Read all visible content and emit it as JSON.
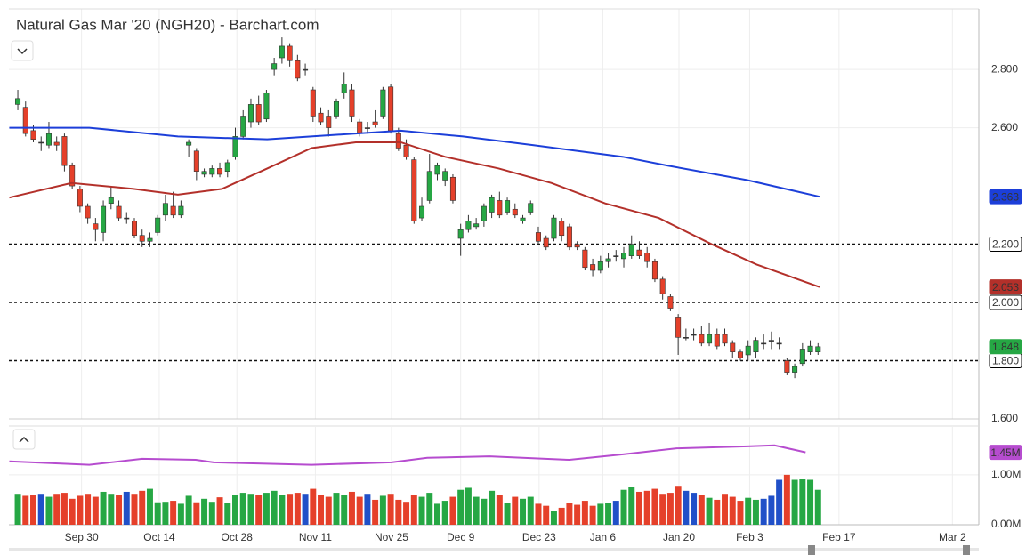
{
  "chart_data": {
    "type": "candlestick",
    "title": "Natural Gas Mar '20 (NGH20) - Barchart.com",
    "xlim": [
      -1.15,
      123.7
    ],
    "xticks": [
      {
        "value": 8.2,
        "label": "Sep 30"
      },
      {
        "value": 18.2,
        "label": "Oct 14"
      },
      {
        "value": 28.2,
        "label": "Oct 28"
      },
      {
        "value": 38.3,
        "label": "Nov 11"
      },
      {
        "value": 48.1,
        "label": "Nov 25"
      },
      {
        "value": 57,
        "label": "Dec 9"
      },
      {
        "value": 67.1,
        "label": "Dec 23"
      },
      {
        "value": 75.3,
        "label": "Jan 6"
      },
      {
        "value": 85.1,
        "label": "Jan 20"
      },
      {
        "value": 94.2,
        "label": "Feb 3"
      },
      {
        "value": 105.7,
        "label": "Feb 17"
      },
      {
        "value": 120.3,
        "label": "Mar 2"
      }
    ],
    "ylim": [
      1.6,
      3.008
    ],
    "yticks": [
      {
        "value": 1.6,
        "label": "1.600"
      },
      {
        "value": 2.6,
        "label": "2.600"
      },
      {
        "value": 2.8,
        "label": "2.800"
      }
    ],
    "grid": true,
    "up_color": "#26a744",
    "down_color": "#e5402a",
    "flat_color": "#2050c8",
    "ohlc": [
      [
        2.68,
        2.73,
        2.66,
        2.7
      ],
      [
        2.67,
        2.69,
        2.57,
        2.58
      ],
      [
        2.59,
        2.61,
        2.55,
        2.56
      ],
      [
        2.55,
        2.57,
        2.52,
        2.55
      ],
      [
        2.54,
        2.62,
        2.53,
        2.58
      ],
      [
        2.55,
        2.57,
        2.52,
        2.54
      ],
      [
        2.57,
        2.58,
        2.45,
        2.47
      ],
      [
        2.47,
        2.48,
        2.39,
        2.4
      ],
      [
        2.39,
        2.4,
        2.31,
        2.33
      ],
      [
        2.33,
        2.34,
        2.27,
        2.29
      ],
      [
        2.27,
        2.29,
        2.21,
        2.25
      ],
      [
        2.24,
        2.35,
        2.21,
        2.33
      ],
      [
        2.34,
        2.4,
        2.32,
        2.36
      ],
      [
        2.33,
        2.35,
        2.28,
        2.29
      ],
      [
        2.29,
        2.31,
        2.27,
        2.29
      ],
      [
        2.28,
        2.29,
        2.22,
        2.23
      ],
      [
        2.23,
        2.25,
        2.19,
        2.21
      ],
      [
        2.21,
        2.24,
        2.19,
        2.22
      ],
      [
        2.24,
        2.3,
        2.23,
        2.29
      ],
      [
        2.3,
        2.37,
        2.28,
        2.34
      ],
      [
        2.33,
        2.38,
        2.29,
        2.3
      ],
      [
        2.3,
        2.35,
        2.29,
        2.33
      ],
      [
        2.54,
        2.56,
        2.5,
        2.55
      ],
      [
        2.52,
        2.53,
        2.42,
        2.45
      ],
      [
        2.44,
        2.46,
        2.43,
        2.45
      ],
      [
        2.44,
        2.47,
        2.43,
        2.46
      ],
      [
        2.46,
        2.48,
        2.43,
        2.44
      ],
      [
        2.45,
        2.49,
        2.43,
        2.48
      ],
      [
        2.5,
        2.6,
        2.49,
        2.57
      ],
      [
        2.57,
        2.66,
        2.56,
        2.64
      ],
      [
        2.62,
        2.7,
        2.6,
        2.68
      ],
      [
        2.68,
        2.71,
        2.61,
        2.62
      ],
      [
        2.63,
        2.73,
        2.62,
        2.72
      ],
      [
        2.8,
        2.84,
        2.78,
        2.82
      ],
      [
        2.84,
        2.91,
        2.82,
        2.88
      ],
      [
        2.88,
        2.89,
        2.81,
        2.83
      ],
      [
        2.83,
        2.85,
        2.76,
        2.77
      ],
      [
        2.8,
        2.82,
        2.78,
        2.8
      ],
      [
        2.73,
        2.74,
        2.62,
        2.64
      ],
      [
        2.65,
        2.67,
        2.61,
        2.62
      ],
      [
        2.64,
        2.66,
        2.57,
        2.6
      ],
      [
        2.64,
        2.7,
        2.63,
        2.69
      ],
      [
        2.72,
        2.79,
        2.7,
        2.75
      ],
      [
        2.73,
        2.75,
        2.62,
        2.64
      ],
      [
        2.62,
        2.63,
        2.57,
        2.58
      ],
      [
        2.6,
        2.62,
        2.58,
        2.6
      ],
      [
        2.62,
        2.66,
        2.6,
        2.61
      ],
      [
        2.64,
        2.74,
        2.63,
        2.73
      ],
      [
        2.74,
        2.75,
        2.58,
        2.59
      ],
      [
        2.58,
        2.6,
        2.52,
        2.53
      ],
      [
        2.54,
        2.56,
        2.49,
        2.5
      ],
      [
        2.49,
        2.5,
        2.27,
        2.28
      ],
      [
        2.29,
        2.36,
        2.28,
        2.33
      ],
      [
        2.35,
        2.51,
        2.34,
        2.45
      ],
      [
        2.44,
        2.48,
        2.42,
        2.47
      ],
      [
        2.42,
        2.46,
        2.4,
        2.45
      ],
      [
        2.43,
        2.44,
        2.34,
        2.35
      ],
      [
        2.22,
        2.27,
        2.16,
        2.25
      ],
      [
        2.25,
        2.3,
        2.24,
        2.28
      ],
      [
        2.26,
        2.29,
        2.25,
        2.27
      ],
      [
        2.28,
        2.34,
        2.26,
        2.33
      ],
      [
        2.31,
        2.37,
        2.29,
        2.36
      ],
      [
        2.35,
        2.38,
        2.29,
        2.3
      ],
      [
        2.31,
        2.36,
        2.3,
        2.35
      ],
      [
        2.32,
        2.34,
        2.29,
        2.3
      ],
      [
        2.28,
        2.3,
        2.27,
        2.29
      ],
      [
        2.31,
        2.35,
        2.3,
        2.34
      ],
      [
        2.24,
        2.26,
        2.2,
        2.21
      ],
      [
        2.22,
        2.23,
        2.18,
        2.19
      ],
      [
        2.22,
        2.3,
        2.21,
        2.29
      ],
      [
        2.28,
        2.29,
        2.21,
        2.23
      ],
      [
        2.26,
        2.27,
        2.18,
        2.19
      ],
      [
        2.2,
        2.21,
        2.18,
        2.19
      ],
      [
        2.18,
        2.19,
        2.11,
        2.12
      ],
      [
        2.13,
        2.15,
        2.09,
        2.11
      ],
      [
        2.11,
        2.16,
        2.1,
        2.14
      ],
      [
        2.14,
        2.17,
        2.12,
        2.15
      ],
      [
        2.16,
        2.18,
        2.14,
        2.16
      ],
      [
        2.15,
        2.19,
        2.12,
        2.17
      ],
      [
        2.16,
        2.23,
        2.15,
        2.2
      ],
      [
        2.18,
        2.21,
        2.15,
        2.16
      ],
      [
        2.17,
        2.19,
        2.12,
        2.14
      ],
      [
        2.14,
        2.15,
        2.07,
        2.08
      ],
      [
        2.08,
        2.09,
        2.01,
        2.03
      ],
      [
        2.02,
        2.03,
        1.97,
        1.98
      ],
      [
        1.95,
        1.96,
        1.82,
        1.88
      ],
      [
        1.88,
        1.91,
        1.87,
        1.88
      ],
      [
        1.89,
        1.91,
        1.87,
        1.89
      ],
      [
        1.89,
        1.92,
        1.85,
        1.86
      ],
      [
        1.86,
        1.93,
        1.85,
        1.89
      ],
      [
        1.89,
        1.91,
        1.84,
        1.85
      ],
      [
        1.89,
        1.91,
        1.85,
        1.86
      ],
      [
        1.86,
        1.87,
        1.81,
        1.83
      ],
      [
        1.83,
        1.84,
        1.8,
        1.81
      ],
      [
        1.82,
        1.87,
        1.8,
        1.85
      ],
      [
        1.83,
        1.88,
        1.81,
        1.87
      ],
      [
        1.86,
        1.89,
        1.84,
        1.86
      ],
      [
        1.87,
        1.9,
        1.84,
        1.87
      ],
      [
        1.86,
        1.88,
        1.84,
        1.86
      ],
      [
        1.8,
        1.81,
        1.75,
        1.76
      ],
      [
        1.76,
        1.79,
        1.74,
        1.78
      ],
      [
        1.79,
        1.86,
        1.78,
        1.84
      ],
      [
        1.83,
        1.87,
        1.82,
        1.85
      ],
      [
        1.83,
        1.86,
        1.82,
        1.848
      ]
    ],
    "series": [
      {
        "color": "#1c3fd9",
        "x": [
          -1.1,
          9.2,
          20.6,
          32.1,
          43.5,
          49.3,
          57.3,
          66.4,
          77.9,
          83.6,
          93.9,
          103.2
        ],
        "values": [
          2.6,
          2.6,
          2.57,
          2.56,
          2.58,
          2.59,
          2.57,
          2.54,
          2.5,
          2.47,
          2.42,
          2.363
        ]
      },
      {
        "color": "#b3302a",
        "x": [
          -1.1,
          6.9,
          14.9,
          20.6,
          26.3,
          32.1,
          37.8,
          43.5,
          49.3,
          55,
          61.9,
          68.7,
          75.6,
          82.5,
          89.3,
          95.1,
          103.2
        ],
        "values": [
          2.36,
          2.41,
          2.39,
          2.37,
          2.39,
          2.46,
          2.53,
          2.55,
          2.55,
          2.5,
          2.46,
          2.41,
          2.34,
          2.29,
          2.2,
          2.13,
          2.053
        ]
      }
    ],
    "hlines": [
      {
        "value": 2.2,
        "label": "2.200"
      },
      {
        "value": 2.0,
        "label": "2.000"
      },
      {
        "value": 1.8,
        "label": "1.800"
      }
    ],
    "volume": {
      "ylim": [
        0,
        1960000
      ],
      "yticks": [
        {
          "value": 0,
          "label": "0.00M"
        },
        {
          "value": 1000000,
          "label": "1.00M"
        }
      ],
      "values": [
        620000,
        580000,
        600000,
        620000,
        560000,
        620000,
        640000,
        520000,
        580000,
        620000,
        560000,
        660000,
        620000,
        600000,
        660000,
        620000,
        680000,
        720000,
        450000,
        460000,
        480000,
        420000,
        580000,
        450000,
        520000,
        460000,
        550000,
        440000,
        600000,
        640000,
        620000,
        600000,
        640000,
        680000,
        600000,
        620000,
        640000,
        620000,
        720000,
        600000,
        560000,
        640000,
        600000,
        660000,
        560000,
        620000,
        500000,
        580000,
        620000,
        500000,
        460000,
        600000,
        560000,
        640000,
        420000,
        480000,
        560000,
        700000,
        740000,
        560000,
        520000,
        680000,
        600000,
        440000,
        560000,
        520000,
        560000,
        420000,
        380000,
        280000,
        340000,
        440000,
        400000,
        480000,
        380000,
        420000,
        440000,
        480000,
        700000,
        760000,
        660000,
        680000,
        720000,
        620000,
        640000,
        780000,
        680000,
        640000,
        600000,
        540000,
        500000,
        620000,
        560000,
        480000,
        540000,
        500000,
        520000,
        580000,
        900000,
        1000000,
        900000,
        920000,
        900000,
        700000
      ],
      "average": {
        "color": "#b64ccf",
        "x": [
          -1.1,
          9.2,
          16,
          22.9,
          25.2,
          37.8,
          48.1,
          52.7,
          60.7,
          71,
          77.9,
          84.8,
          93.9,
          97.4,
          101.4
        ],
        "values": [
          1270000,
          1200000,
          1320000,
          1300000,
          1250000,
          1200000,
          1250000,
          1340000,
          1370000,
          1300000,
          1410000,
          1530000,
          1570000,
          1590000,
          1450000
        ],
        "tag": "1.45M"
      }
    }
  }
}
